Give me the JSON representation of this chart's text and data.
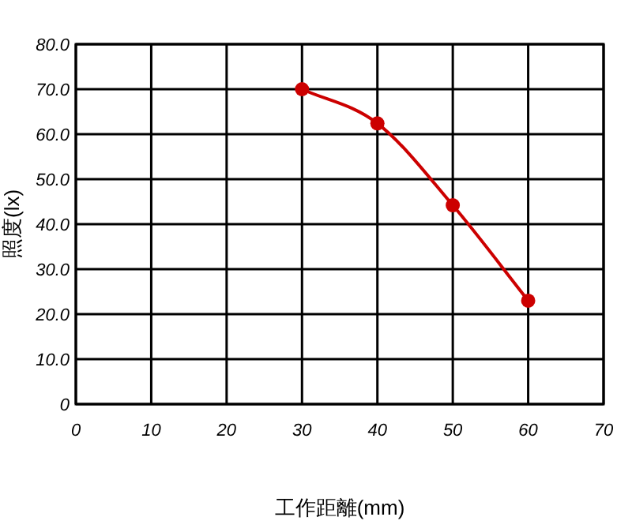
{
  "chart_data": {
    "type": "line",
    "xlabel": "工作距離(mm)",
    "ylabel": "照度(lx)",
    "x": [
      30,
      40,
      50,
      60
    ],
    "series": [
      {
        "color": "#cc0000",
        "values": [
          70.0,
          62.4,
          44.2,
          23.0
        ]
      }
    ],
    "xlim": [
      0,
      70
    ],
    "xticks": [
      0,
      10,
      20,
      30,
      40,
      50,
      60,
      70
    ],
    "ylim": [
      0,
      80
    ],
    "yticks": [
      {
        "value": 0,
        "label": "0"
      },
      {
        "value": 10,
        "label": "10.0"
      },
      {
        "value": 20,
        "label": "20.0"
      },
      {
        "value": 30,
        "label": "30.0"
      },
      {
        "value": 40,
        "label": "40.0"
      },
      {
        "value": 50,
        "label": "50.0"
      },
      {
        "value": 60,
        "label": "60.0"
      },
      {
        "value": 70,
        "label": "70.0"
      },
      {
        "value": 80,
        "label": "80.0"
      }
    ],
    "grid": true,
    "marker": "circle",
    "line_style": "solid"
  }
}
